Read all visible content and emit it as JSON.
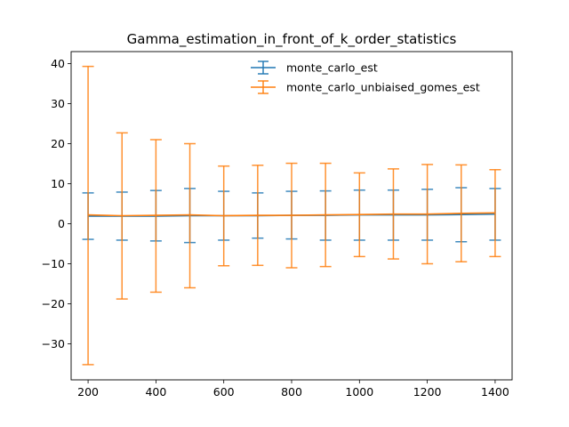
{
  "chart_data": {
    "type": "line",
    "title": "Gamma_estimation_in_front_of_k_order_statistics",
    "xlabel": "",
    "ylabel": "",
    "x": [
      200,
      300,
      400,
      500,
      600,
      700,
      800,
      900,
      1000,
      1100,
      1200,
      1300,
      1400
    ],
    "xlim": [
      150,
      1450
    ],
    "ylim": [
      -39,
      43
    ],
    "xticks": [
      200,
      400,
      600,
      800,
      1000,
      1200,
      1400
    ],
    "yticks": [
      -30,
      -20,
      -10,
      0,
      10,
      20,
      30,
      40
    ],
    "error_bars": true,
    "legend_position": "top-right",
    "grid": false,
    "series": [
      {
        "name": "monte_carlo_est",
        "color": "#1f77b4",
        "values": [
          1.9,
          1.9,
          1.9,
          2.0,
          2.0,
          2.0,
          2.1,
          2.1,
          2.2,
          2.2,
          2.2,
          2.3,
          2.4
        ],
        "err_low": [
          -3.9,
          -4.1,
          -4.3,
          -4.7,
          -4.1,
          -3.6,
          -3.8,
          -4.1,
          -4.1,
          -4.1,
          -4.1,
          -4.5,
          -4.1
        ],
        "err_high": [
          7.7,
          7.9,
          8.3,
          8.8,
          8.1,
          7.7,
          8.1,
          8.2,
          8.4,
          8.4,
          8.6,
          9.0,
          8.8
        ]
      },
      {
        "name": "monte_carlo_unbiaised_gomes_est",
        "color": "#ff7f0e",
        "values": [
          2.2,
          2.0,
          2.1,
          2.2,
          2.0,
          2.1,
          2.1,
          2.2,
          2.3,
          2.4,
          2.4,
          2.6,
          2.7
        ],
        "err_low": [
          -35.2,
          -18.8,
          -17.1,
          -16.0,
          -10.5,
          -10.4,
          -11.0,
          -10.7,
          -8.2,
          -8.8,
          -10.0,
          -9.5,
          -8.2
        ],
        "err_high": [
          39.3,
          22.7,
          21.0,
          20.0,
          14.4,
          14.6,
          15.1,
          15.1,
          12.7,
          13.7,
          14.8,
          14.7,
          13.5
        ]
      }
    ]
  }
}
